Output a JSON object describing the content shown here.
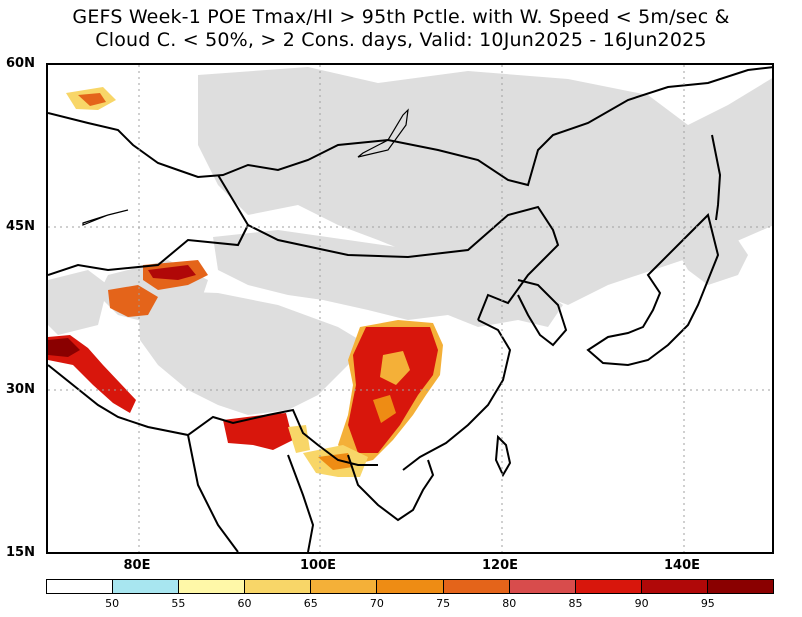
{
  "title": {
    "line1": "GEFS Week-1 POE Tmax/HI > 95th Pctle. with W. Speed < 5m/sec &",
    "line2": "Cloud C. < 50%, > 2 Cons. days, Valid: 10Jun2025 - 16Jun2025"
  },
  "axes": {
    "lat_labels": [
      "60N",
      "45N",
      "30N",
      "15N"
    ],
    "lon_labels": [
      "80E",
      "100E",
      "120E",
      "140E"
    ]
  },
  "colorbar": {
    "colors": [
      "#ffffff",
      "#a8e6f0",
      "#fff8a8",
      "#f8d668",
      "#f4b038",
      "#ee8c14",
      "#e4641a",
      "#d84c4c",
      "#d8160c",
      "#b00808",
      "#8a0000"
    ],
    "labels": [
      "50",
      "55",
      "60",
      "65",
      "70",
      "75",
      "80",
      "85",
      "90",
      "95"
    ]
  },
  "legend_colors": {
    "nodata_gray": "#dedede",
    "coast": "#000000"
  }
}
